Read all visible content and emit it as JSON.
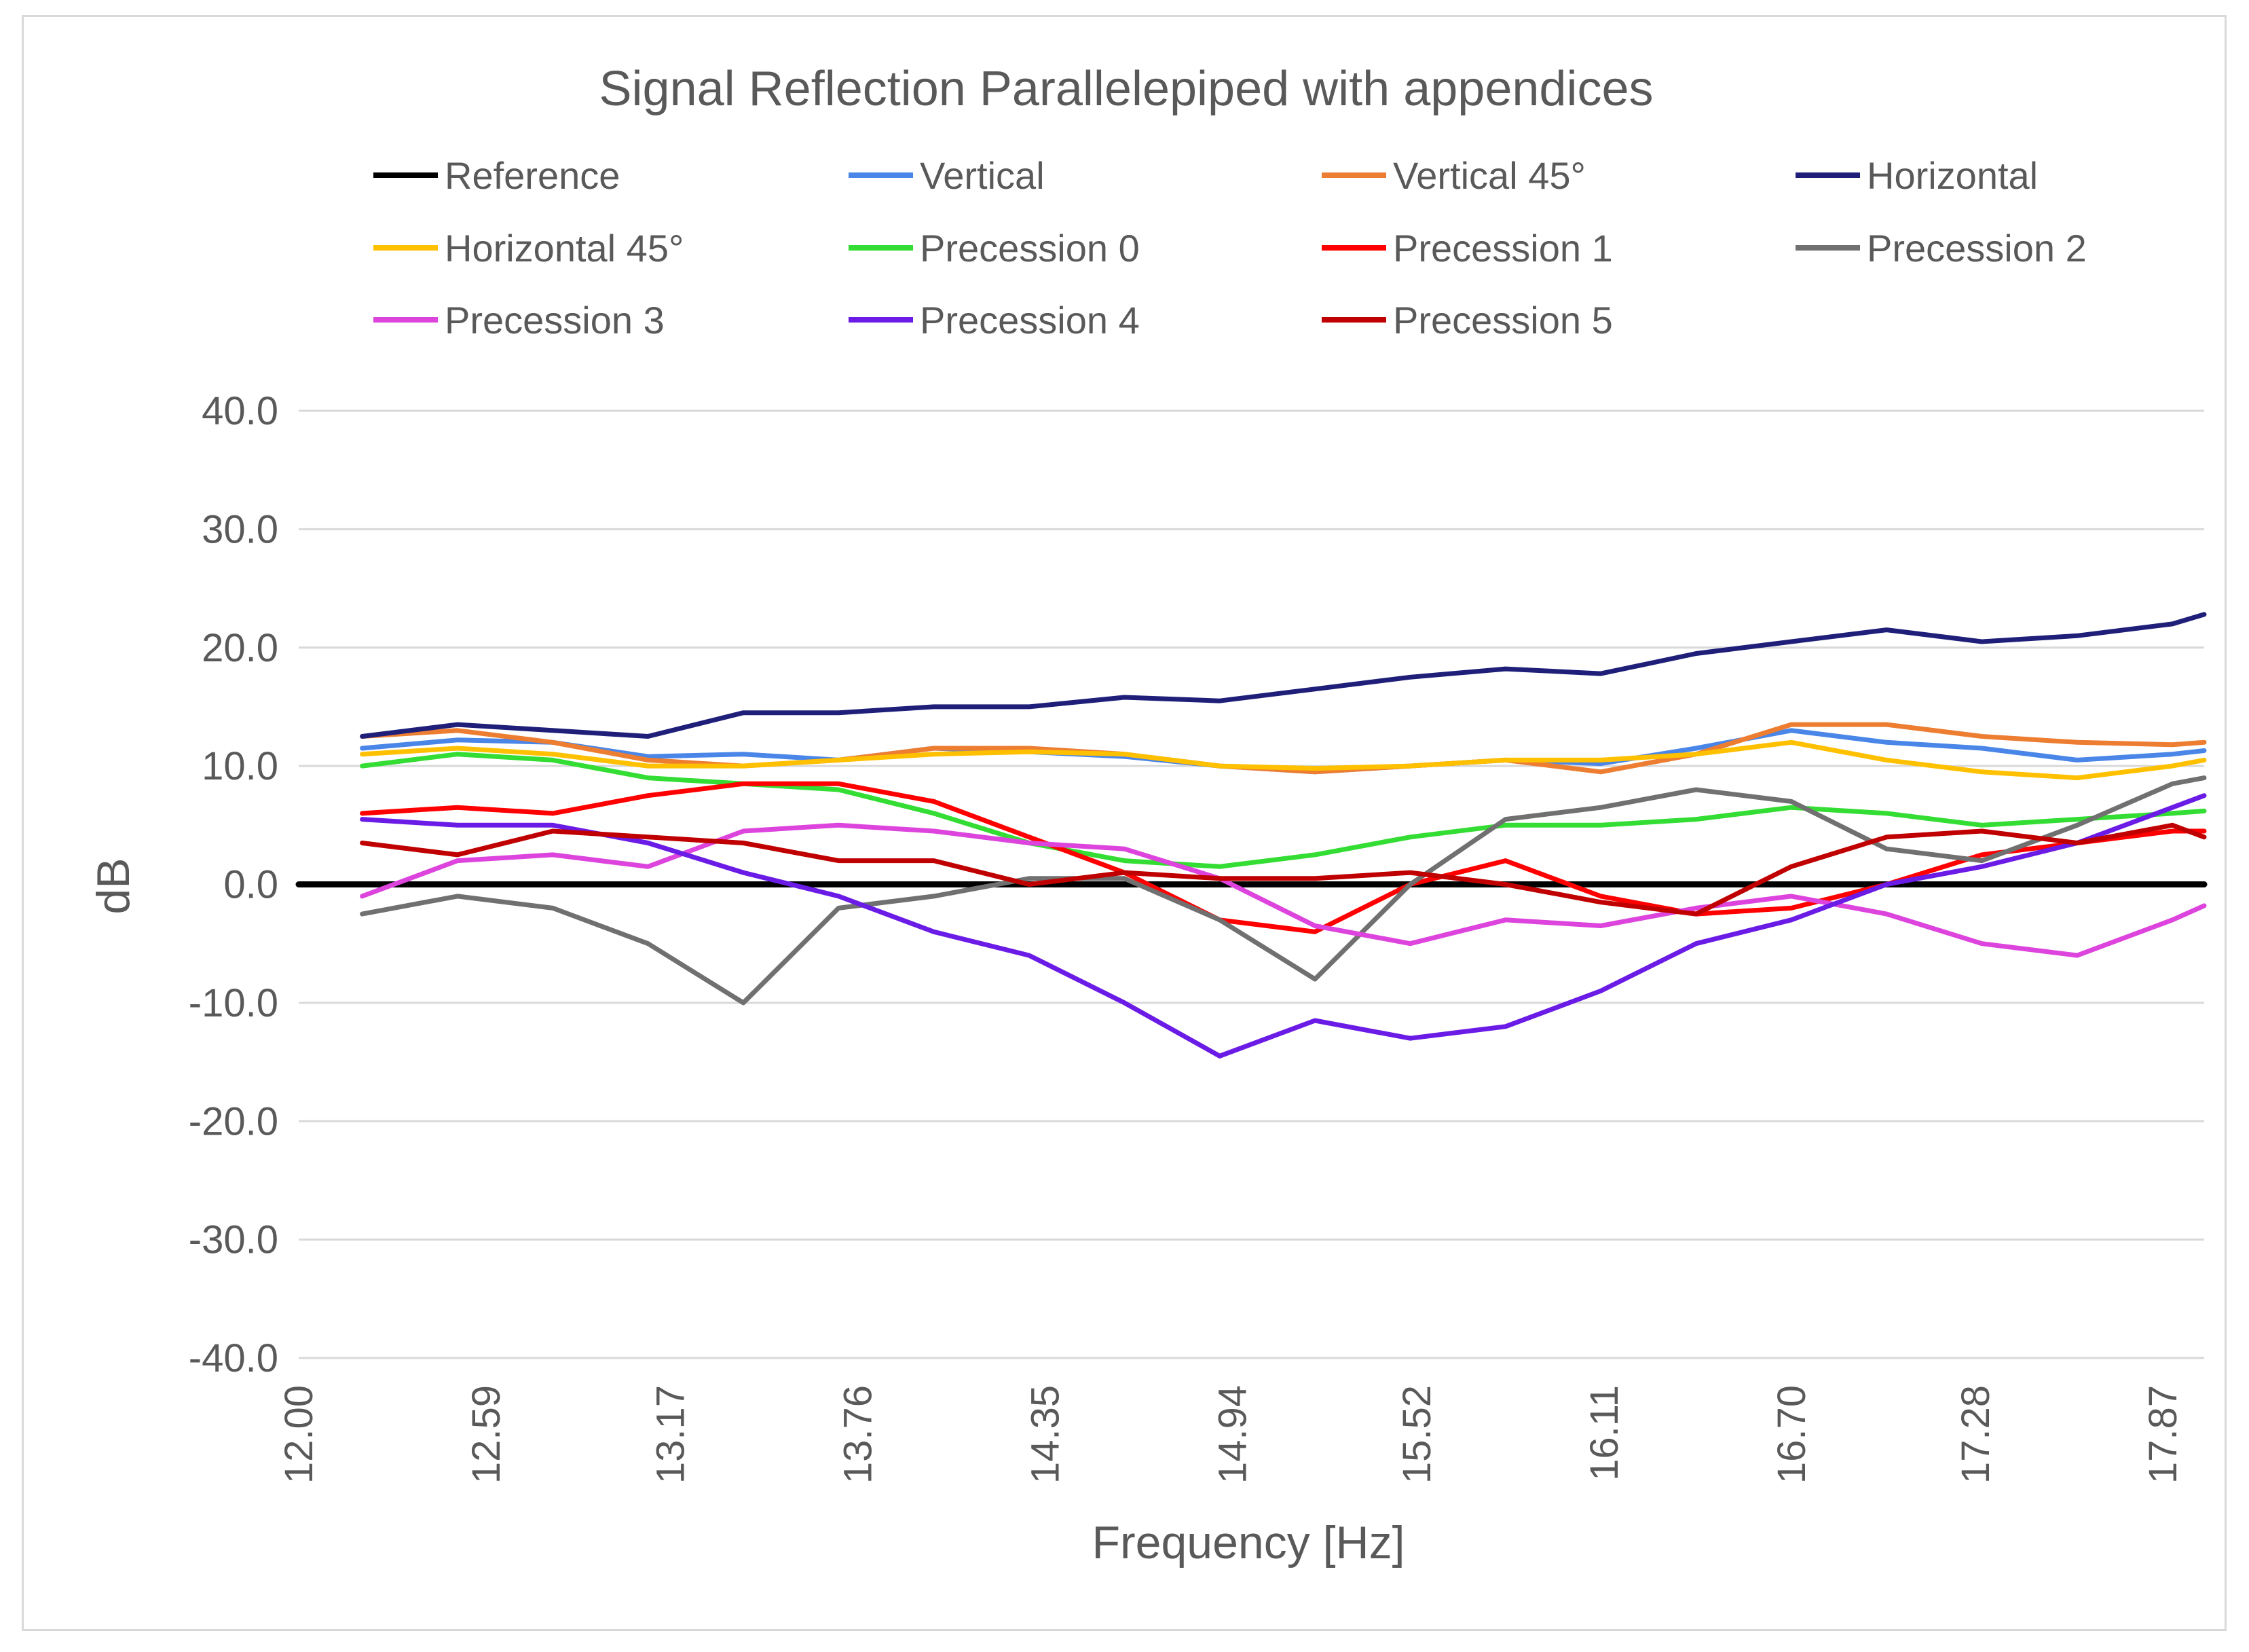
{
  "chart_data": {
    "type": "line",
    "title": "Signal Reflection Parallelepiped with appendices",
    "xlabel": "Frequency [Hz]",
    "ylabel": "dB",
    "ylim": [
      -40,
      40
    ],
    "yticks": [
      "40.0",
      "30.0",
      "20.0",
      "10.0",
      "0.0",
      "-10.0",
      "-20.0",
      "-30.0",
      "-40.0"
    ],
    "xlim": [
      12.0,
      18.0
    ],
    "xticks": [
      "12.00",
      "12.59",
      "13.17",
      "13.76",
      "14.35",
      "14.94",
      "15.52",
      "16.11",
      "16.70",
      "17.28",
      "17.87"
    ],
    "grid": true,
    "legend_position": "top",
    "series": [
      {
        "name": "Reference",
        "color": "#000000",
        "x": [
          12.0,
          18.0
        ],
        "values": [
          0.0,
          0.0
        ]
      },
      {
        "name": "Vertical",
        "color": "#4a86e8",
        "x": [
          12.2,
          12.5,
          12.8,
          13.1,
          13.4,
          13.7,
          14.0,
          14.3,
          14.6,
          14.9,
          15.2,
          15.5,
          15.8,
          16.1,
          16.4,
          16.7,
          17.0,
          17.3,
          17.6,
          17.9,
          18.0
        ],
        "values": [
          11.5,
          12.2,
          12.0,
          10.8,
          11.0,
          10.5,
          11.5,
          11.2,
          10.8,
          10.0,
          9.5,
          10.0,
          10.5,
          10.2,
          11.5,
          13.0,
          12.0,
          11.5,
          10.5,
          11.0,
          11.3
        ]
      },
      {
        "name": "Vertical 45°",
        "color": "#ed7d31",
        "x": [
          12.2,
          12.5,
          12.8,
          13.1,
          13.4,
          13.7,
          14.0,
          14.3,
          14.6,
          14.9,
          15.2,
          15.5,
          15.8,
          16.1,
          16.4,
          16.7,
          17.0,
          17.3,
          17.6,
          17.9,
          18.0
        ],
        "values": [
          12.5,
          13.0,
          12.0,
          10.5,
          10.0,
          10.5,
          11.5,
          11.5,
          11.0,
          10.0,
          9.5,
          10.0,
          10.5,
          9.5,
          11.0,
          13.5,
          13.5,
          12.5,
          12.0,
          11.8,
          12.0
        ]
      },
      {
        "name": "Horizontal",
        "color": "#1f1f7a",
        "x": [
          12.2,
          12.5,
          12.8,
          13.1,
          13.4,
          13.7,
          14.0,
          14.3,
          14.6,
          14.9,
          15.2,
          15.5,
          15.8,
          16.1,
          16.4,
          16.7,
          17.0,
          17.3,
          17.6,
          17.9,
          18.0
        ],
        "values": [
          12.5,
          13.5,
          13.0,
          12.5,
          14.5,
          14.5,
          15.0,
          15.0,
          15.8,
          15.5,
          16.5,
          17.5,
          18.2,
          17.8,
          19.5,
          20.5,
          21.5,
          20.5,
          21.0,
          22.0,
          22.8
        ]
      },
      {
        "name": "Horizontal 45°",
        "color": "#ffc000",
        "x": [
          12.2,
          12.5,
          12.8,
          13.1,
          13.4,
          13.7,
          14.0,
          14.3,
          14.6,
          14.9,
          15.2,
          15.5,
          15.8,
          16.1,
          16.4,
          16.7,
          17.0,
          17.3,
          17.6,
          17.9,
          18.0
        ],
        "values": [
          11.0,
          11.5,
          11.0,
          10.0,
          10.0,
          10.5,
          11.0,
          11.2,
          11.0,
          10.0,
          9.8,
          10.0,
          10.5,
          10.5,
          11.0,
          12.0,
          10.5,
          9.5,
          9.0,
          10.0,
          10.5
        ]
      },
      {
        "name": "Precession 0",
        "color": "#33dd33",
        "x": [
          12.2,
          12.5,
          12.8,
          13.1,
          13.4,
          13.7,
          14.0,
          14.3,
          14.6,
          14.9,
          15.2,
          15.5,
          15.8,
          16.1,
          16.4,
          16.7,
          17.0,
          17.3,
          17.6,
          17.9,
          18.0
        ],
        "values": [
          10.0,
          11.0,
          10.5,
          9.0,
          8.5,
          8.0,
          6.0,
          3.5,
          2.0,
          1.5,
          2.5,
          4.0,
          5.0,
          5.0,
          5.5,
          6.5,
          6.0,
          5.0,
          5.5,
          6.0,
          6.2
        ]
      },
      {
        "name": "Precession 1",
        "color": "#ff0000",
        "x": [
          12.2,
          12.5,
          12.8,
          13.1,
          13.4,
          13.7,
          14.0,
          14.3,
          14.6,
          14.9,
          15.2,
          15.5,
          15.8,
          16.1,
          16.4,
          16.7,
          17.0,
          17.3,
          17.6,
          17.9,
          18.0
        ],
        "values": [
          6.0,
          6.5,
          6.0,
          7.5,
          8.5,
          8.5,
          7.0,
          4.0,
          1.0,
          -3.0,
          -4.0,
          0.0,
          2.0,
          -1.0,
          -2.5,
          -2.0,
          0.0,
          2.5,
          3.5,
          4.5,
          4.5
        ]
      },
      {
        "name": "Precession 2",
        "color": "#707070",
        "x": [
          12.2,
          12.5,
          12.8,
          13.1,
          13.4,
          13.7,
          14.0,
          14.3,
          14.6,
          14.9,
          15.2,
          15.5,
          15.8,
          16.1,
          16.4,
          16.7,
          17.0,
          17.3,
          17.6,
          17.9,
          18.0
        ],
        "values": [
          -2.5,
          -1.0,
          -2.0,
          -5.0,
          -10.0,
          -2.0,
          -1.0,
          0.5,
          0.5,
          -3.0,
          -8.0,
          0.0,
          5.5,
          6.5,
          8.0,
          7.0,
          3.0,
          2.0,
          5.0,
          8.5,
          9.0
        ]
      },
      {
        "name": "Precession 3",
        "color": "#dd44dd",
        "x": [
          12.2,
          12.5,
          12.8,
          13.1,
          13.4,
          13.7,
          14.0,
          14.3,
          14.6,
          14.9,
          15.2,
          15.5,
          15.8,
          16.1,
          16.4,
          16.7,
          17.0,
          17.3,
          17.6,
          17.9,
          18.0
        ],
        "values": [
          -1.0,
          2.0,
          2.5,
          1.5,
          4.5,
          5.0,
          4.5,
          3.5,
          3.0,
          0.5,
          -3.5,
          -5.0,
          -3.0,
          -3.5,
          -2.0,
          -1.0,
          -2.5,
          -5.0,
          -6.0,
          -3.0,
          -1.8
        ]
      },
      {
        "name": "Precession 4",
        "color": "#6a1be6",
        "x": [
          12.2,
          12.5,
          12.8,
          13.1,
          13.4,
          13.7,
          14.0,
          14.3,
          14.6,
          14.9,
          15.2,
          15.5,
          15.8,
          16.1,
          16.4,
          16.7,
          17.0,
          17.3,
          17.6,
          17.9,
          18.0
        ],
        "values": [
          5.5,
          5.0,
          5.0,
          3.5,
          1.0,
          -1.0,
          -4.0,
          -6.0,
          -10.0,
          -14.5,
          -11.5,
          -13.0,
          -12.0,
          -9.0,
          -5.0,
          -3.0,
          0.0,
          1.5,
          3.5,
          6.5,
          7.5
        ]
      },
      {
        "name": "Precession 5",
        "color": "#c00000",
        "x": [
          12.2,
          12.5,
          12.8,
          13.1,
          13.4,
          13.7,
          14.0,
          14.3,
          14.6,
          14.9,
          15.2,
          15.5,
          15.8,
          16.1,
          16.4,
          16.7,
          17.0,
          17.3,
          17.6,
          17.9,
          18.0
        ],
        "values": [
          3.5,
          2.5,
          4.5,
          4.0,
          3.5,
          2.0,
          2.0,
          0.0,
          1.0,
          0.5,
          0.5,
          1.0,
          0.0,
          -1.5,
          -2.5,
          1.5,
          4.0,
          4.5,
          3.5,
          5.0,
          4.0
        ]
      }
    ]
  }
}
